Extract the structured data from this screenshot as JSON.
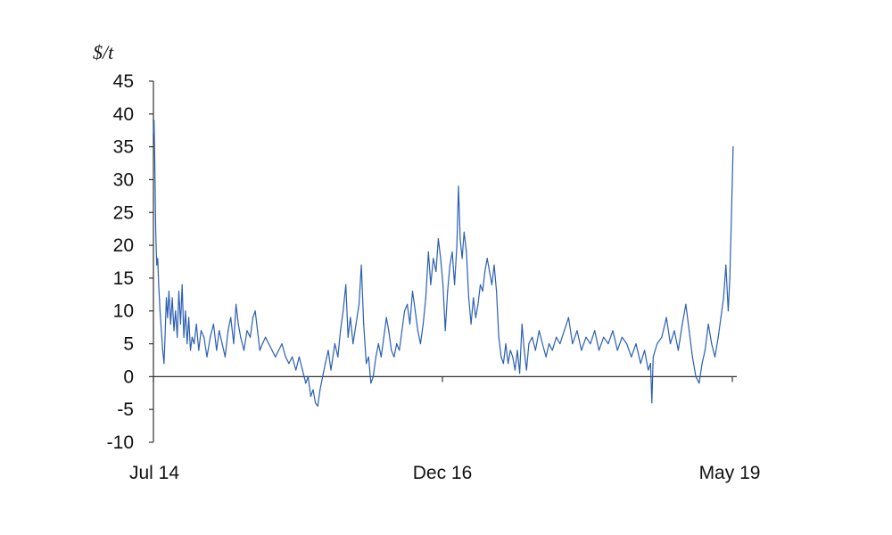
{
  "chart_data": {
    "type": "line",
    "ylabel": "$/t",
    "ylim": [
      -10,
      45
    ],
    "yticks": [
      "45",
      "40",
      "35",
      "30",
      "25",
      "20",
      "15",
      "10",
      "5",
      "0",
      "-5",
      "-10"
    ],
    "xlabels": [
      "Jul 14",
      "Dec 16",
      "May 19"
    ],
    "grid": false,
    "series": [
      {
        "color": "#2b5fb3",
        "points": [
          [
            "2014-07-01",
            37
          ],
          [
            "2014-07-03",
            39
          ],
          [
            "2014-07-05",
            33
          ],
          [
            "2014-07-08",
            22
          ],
          [
            "2014-07-11",
            17
          ],
          [
            "2014-07-14",
            18
          ],
          [
            "2014-07-17",
            14
          ],
          [
            "2014-07-21",
            10
          ],
          [
            "2014-07-25",
            7
          ],
          [
            "2014-07-29",
            4
          ],
          [
            "2014-08-02",
            2
          ],
          [
            "2014-08-05",
            6
          ],
          [
            "2014-08-09",
            12
          ],
          [
            "2014-08-13",
            9
          ],
          [
            "2014-08-17",
            13
          ],
          [
            "2014-08-22",
            8
          ],
          [
            "2014-08-27",
            12
          ],
          [
            "2014-09-01",
            7
          ],
          [
            "2014-09-06",
            10
          ],
          [
            "2014-09-11",
            6
          ],
          [
            "2014-09-16",
            13
          ],
          [
            "2014-09-21",
            8
          ],
          [
            "2014-09-26",
            14
          ],
          [
            "2014-10-01",
            6
          ],
          [
            "2014-10-06",
            10
          ],
          [
            "2014-10-11",
            5
          ],
          [
            "2014-10-16",
            9
          ],
          [
            "2014-10-21",
            4
          ],
          [
            "2014-10-26",
            6
          ],
          [
            "2014-11-01",
            5
          ],
          [
            "2014-11-08",
            8
          ],
          [
            "2014-11-15",
            4
          ],
          [
            "2014-11-22",
            7
          ],
          [
            "2014-12-01",
            6
          ],
          [
            "2014-12-10",
            3
          ],
          [
            "2014-12-20",
            6
          ],
          [
            "2014-12-30",
            8
          ],
          [
            "2015-01-08",
            4
          ],
          [
            "2015-01-16",
            7
          ],
          [
            "2015-01-25",
            5
          ],
          [
            "2015-02-03",
            3
          ],
          [
            "2015-02-12",
            7
          ],
          [
            "2015-02-20",
            9
          ],
          [
            "2015-03-01",
            5
          ],
          [
            "2015-03-08",
            11
          ],
          [
            "2015-03-15",
            8
          ],
          [
            "2015-03-22",
            6
          ],
          [
            "2015-04-01",
            4
          ],
          [
            "2015-04-10",
            7
          ],
          [
            "2015-04-20",
            6
          ],
          [
            "2015-04-28",
            9
          ],
          [
            "2015-05-05",
            10
          ],
          [
            "2015-05-12",
            7
          ],
          [
            "2015-05-19",
            4
          ],
          [
            "2015-05-27",
            5
          ],
          [
            "2015-06-05",
            6
          ],
          [
            "2015-06-15",
            5
          ],
          [
            "2015-06-25",
            4
          ],
          [
            "2015-07-05",
            3
          ],
          [
            "2015-07-15",
            4
          ],
          [
            "2015-07-25",
            5
          ],
          [
            "2015-08-05",
            3
          ],
          [
            "2015-08-15",
            2
          ],
          [
            "2015-08-25",
            3
          ],
          [
            "2015-09-05",
            1
          ],
          [
            "2015-09-15",
            3
          ],
          [
            "2015-09-25",
            1
          ],
          [
            "2015-10-05",
            -1
          ],
          [
            "2015-10-12",
            0
          ],
          [
            "2015-10-20",
            -3
          ],
          [
            "2015-10-27",
            -2
          ],
          [
            "2015-11-03",
            -4
          ],
          [
            "2015-11-10",
            -4.5
          ],
          [
            "2015-11-17",
            -2
          ],
          [
            "2015-11-25",
            0
          ],
          [
            "2015-12-03",
            2
          ],
          [
            "2015-12-12",
            4
          ],
          [
            "2015-12-20",
            1
          ],
          [
            "2016-01-01",
            5
          ],
          [
            "2016-01-10",
            3
          ],
          [
            "2016-01-18",
            7
          ],
          [
            "2016-01-26",
            10
          ],
          [
            "2016-02-03",
            14
          ],
          [
            "2016-02-10",
            6
          ],
          [
            "2016-02-17",
            9
          ],
          [
            "2016-02-25",
            5
          ],
          [
            "2016-03-05",
            8
          ],
          [
            "2016-03-14",
            11
          ],
          [
            "2016-03-21",
            17
          ],
          [
            "2016-03-28",
            8
          ],
          [
            "2016-04-05",
            2
          ],
          [
            "2016-04-12",
            3
          ],
          [
            "2016-04-19",
            -1
          ],
          [
            "2016-04-26",
            0
          ],
          [
            "2016-05-04",
            3
          ],
          [
            "2016-05-12",
            5
          ],
          [
            "2016-05-20",
            3
          ],
          [
            "2016-05-28",
            6
          ],
          [
            "2016-06-05",
            9
          ],
          [
            "2016-06-12",
            7
          ],
          [
            "2016-06-20",
            4
          ],
          [
            "2016-06-28",
            3
          ],
          [
            "2016-07-06",
            5
          ],
          [
            "2016-07-14",
            4
          ],
          [
            "2016-07-22",
            7
          ],
          [
            "2016-07-30",
            10
          ],
          [
            "2016-08-07",
            11
          ],
          [
            "2016-08-15",
            8
          ],
          [
            "2016-08-23",
            13
          ],
          [
            "2016-08-31",
            10
          ],
          [
            "2016-09-08",
            7
          ],
          [
            "2016-09-16",
            5
          ],
          [
            "2016-09-24",
            8
          ],
          [
            "2016-10-02",
            12
          ],
          [
            "2016-10-10",
            19
          ],
          [
            "2016-10-17",
            14
          ],
          [
            "2016-10-25",
            18
          ],
          [
            "2016-11-02",
            16
          ],
          [
            "2016-11-09",
            21
          ],
          [
            "2016-11-16",
            18
          ],
          [
            "2016-11-23",
            14
          ],
          [
            "2016-11-30",
            7
          ],
          [
            "2016-12-07",
            13
          ],
          [
            "2016-12-14",
            17
          ],
          [
            "2016-12-21",
            19
          ],
          [
            "2016-12-28",
            14
          ],
          [
            "2017-01-04",
            20
          ],
          [
            "2017-01-09",
            29
          ],
          [
            "2017-01-14",
            21
          ],
          [
            "2017-01-20",
            18
          ],
          [
            "2017-01-26",
            22
          ],
          [
            "2017-02-02",
            19
          ],
          [
            "2017-02-09",
            12
          ],
          [
            "2017-02-16",
            8
          ],
          [
            "2017-02-23",
            12
          ],
          [
            "2017-03-02",
            9
          ],
          [
            "2017-03-09",
            11
          ],
          [
            "2017-03-16",
            14
          ],
          [
            "2017-03-23",
            13
          ],
          [
            "2017-03-30",
            16
          ],
          [
            "2017-04-06",
            18
          ],
          [
            "2017-04-13",
            16
          ],
          [
            "2017-04-20",
            14
          ],
          [
            "2017-04-27",
            17
          ],
          [
            "2017-05-04",
            13
          ],
          [
            "2017-05-11",
            6
          ],
          [
            "2017-05-18",
            3
          ],
          [
            "2017-05-25",
            2
          ],
          [
            "2017-06-01",
            5
          ],
          [
            "2017-06-08",
            2
          ],
          [
            "2017-06-15",
            4
          ],
          [
            "2017-06-22",
            3
          ],
          [
            "2017-06-29",
            1
          ],
          [
            "2017-07-06",
            4
          ],
          [
            "2017-07-13",
            0.5
          ],
          [
            "2017-07-20",
            8
          ],
          [
            "2017-07-27",
            4
          ],
          [
            "2017-08-03",
            1
          ],
          [
            "2017-08-10",
            5
          ],
          [
            "2017-08-20",
            6
          ],
          [
            "2017-08-30",
            4
          ],
          [
            "2017-09-10",
            7
          ],
          [
            "2017-09-20",
            5
          ],
          [
            "2017-10-01",
            3
          ],
          [
            "2017-10-10",
            5
          ],
          [
            "2017-10-20",
            4
          ],
          [
            "2017-11-01",
            6
          ],
          [
            "2017-11-12",
            5
          ],
          [
            "2017-11-25",
            7
          ],
          [
            "2017-12-08",
            9
          ],
          [
            "2017-12-20",
            5
          ],
          [
            "2018-01-03",
            7
          ],
          [
            "2018-01-16",
            4
          ],
          [
            "2018-01-30",
            6
          ],
          [
            "2018-02-12",
            5
          ],
          [
            "2018-02-25",
            7
          ],
          [
            "2018-03-10",
            4
          ],
          [
            "2018-03-24",
            6
          ],
          [
            "2018-04-07",
            5
          ],
          [
            "2018-04-21",
            7
          ],
          [
            "2018-05-05",
            4
          ],
          [
            "2018-05-19",
            6
          ],
          [
            "2018-06-02",
            5
          ],
          [
            "2018-06-16",
            3
          ],
          [
            "2018-06-30",
            5
          ],
          [
            "2018-07-14",
            2
          ],
          [
            "2018-07-26",
            4
          ],
          [
            "2018-08-06",
            1
          ],
          [
            "2018-08-13",
            2
          ],
          [
            "2018-08-17",
            -4
          ],
          [
            "2018-08-21",
            3
          ],
          [
            "2018-09-02",
            5
          ],
          [
            "2018-09-16",
            6
          ],
          [
            "2018-09-30",
            9
          ],
          [
            "2018-10-12",
            5
          ],
          [
            "2018-10-24",
            7
          ],
          [
            "2018-11-05",
            4
          ],
          [
            "2018-11-17",
            8
          ],
          [
            "2018-11-28",
            11
          ],
          [
            "2018-12-08",
            7
          ],
          [
            "2018-12-18",
            3
          ],
          [
            "2018-12-28",
            0
          ],
          [
            "2019-01-07",
            -1
          ],
          [
            "2019-01-16",
            2
          ],
          [
            "2019-01-25",
            4
          ],
          [
            "2019-02-04",
            8
          ],
          [
            "2019-02-14",
            5
          ],
          [
            "2019-02-24",
            3
          ],
          [
            "2019-03-06",
            6
          ],
          [
            "2019-03-14",
            9
          ],
          [
            "2019-03-22",
            12
          ],
          [
            "2019-03-29",
            17
          ],
          [
            "2019-04-05",
            10
          ],
          [
            "2019-04-10",
            15
          ],
          [
            "2019-04-15",
            25
          ],
          [
            "2019-04-20",
            35
          ]
        ]
      }
    ]
  }
}
